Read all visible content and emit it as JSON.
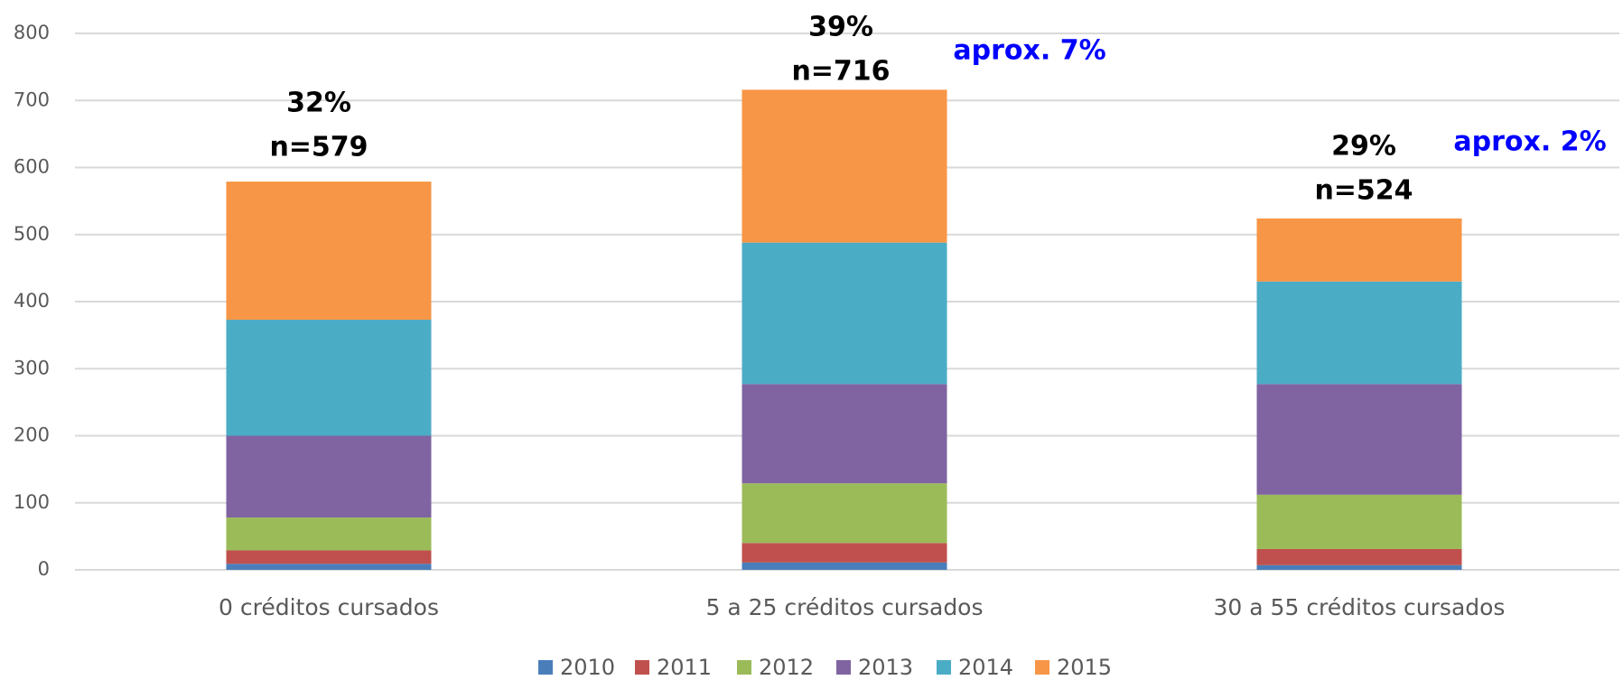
{
  "chart_data": {
    "type": "stacked_bar",
    "categories": [
      "0 créditos cursados",
      "5 a 25 créditos cursados",
      "30 a 55 créditos cursados"
    ],
    "series": [
      {
        "name": "2010",
        "color": "#4a7ebb",
        "values": [
          9,
          11,
          7
        ]
      },
      {
        "name": "2011",
        "color": "#c0504d",
        "values": [
          20,
          29,
          24
        ]
      },
      {
        "name": "2012",
        "color": "#9bbb59",
        "values": [
          49,
          89,
          81
        ]
      },
      {
        "name": "2013",
        "color": "#8064a2",
        "values": [
          122,
          148,
          165
        ]
      },
      {
        "name": "2014",
        "color": "#4bacc6",
        "values": [
          173,
          211,
          153
        ]
      },
      {
        "name": "2015",
        "color": "#f79646",
        "values": [
          206,
          228,
          94
        ]
      }
    ],
    "ylim": [
      0,
      800
    ],
    "yticks": [
      0,
      100,
      200,
      300,
      400,
      500,
      600,
      700,
      800
    ],
    "grid": true,
    "legend": "bottom",
    "annotations": [
      "32%",
      "n=579",
      "39%",
      "n=716",
      "29%",
      "n=524",
      "aprox. 7%",
      "aprox. 2%"
    ]
  }
}
